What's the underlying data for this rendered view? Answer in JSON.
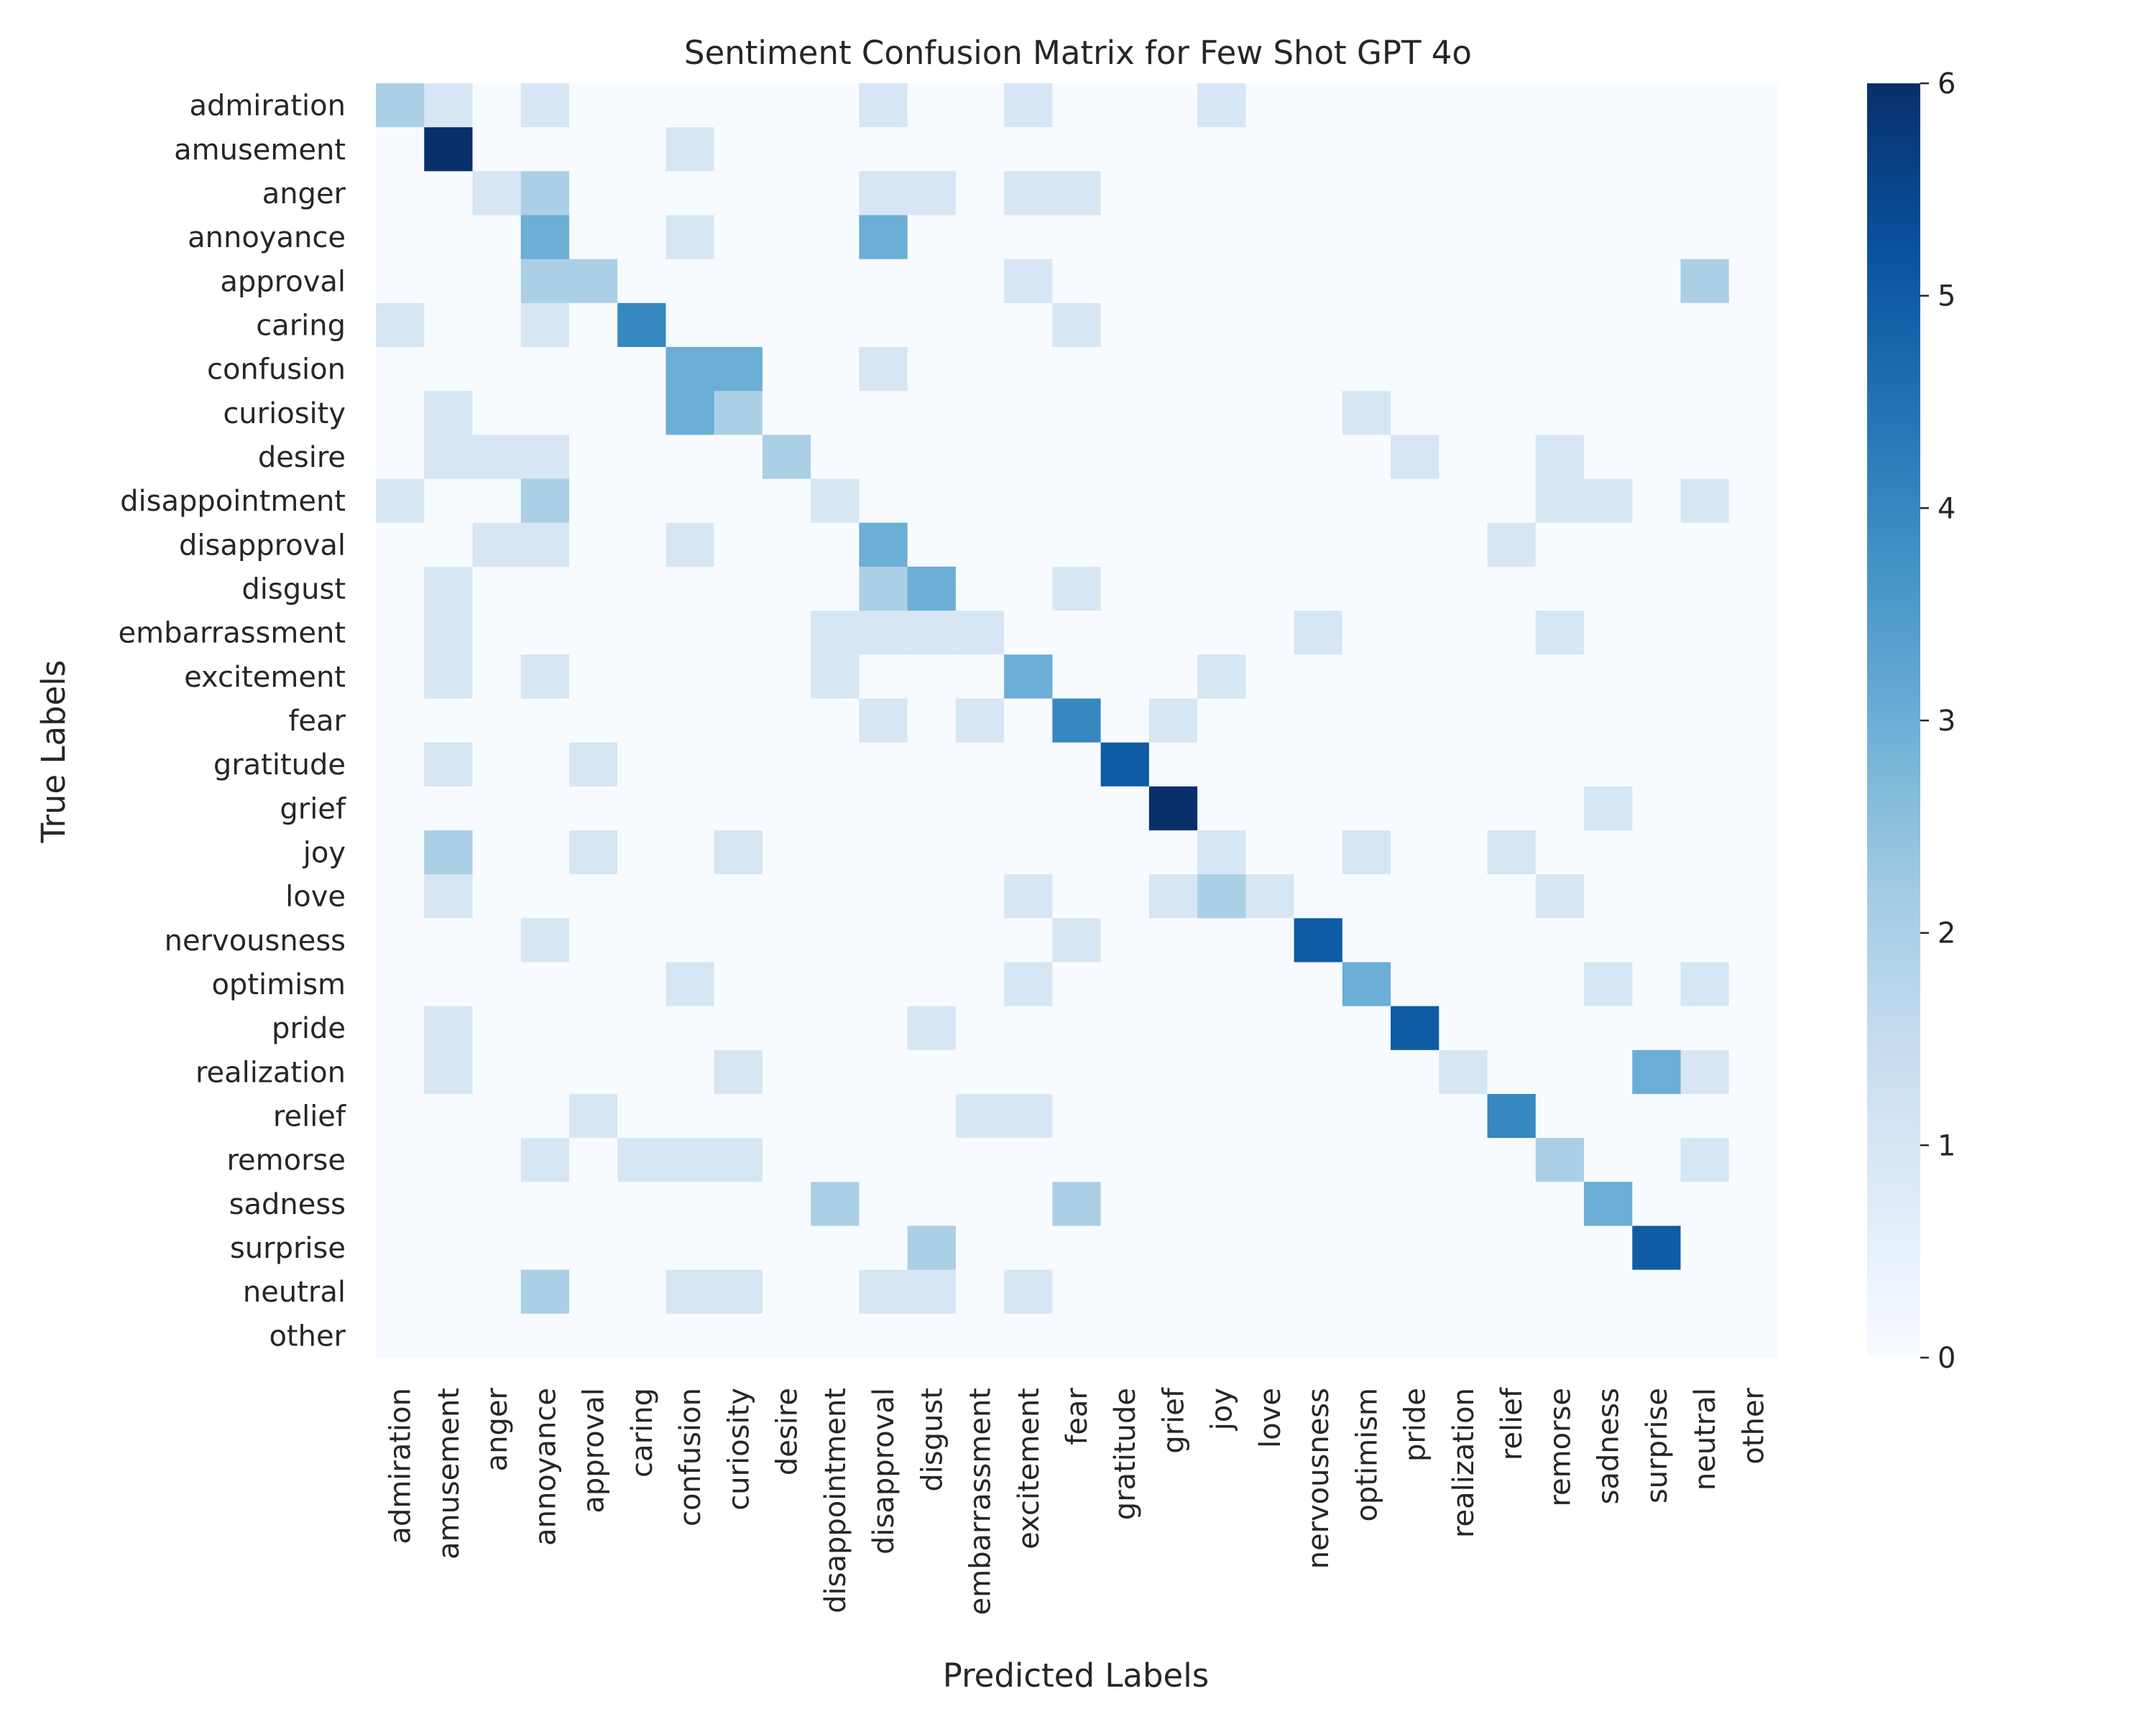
{
  "chart_data": {
    "type": "heatmap",
    "title": "Sentiment Confusion Matrix for Few Shot GPT 4o",
    "xlabel": "Predicted Labels",
    "ylabel": "True Labels",
    "colormap": "Blues",
    "color_low": "#f7fbff",
    "color_high": "#08306b",
    "vmin": 0,
    "vmax": 6,
    "colorbar_ticks": [
      "0",
      "1",
      "2",
      "3",
      "4",
      "5",
      "6"
    ],
    "labels": [
      "admiration",
      "amusement",
      "anger",
      "annoyance",
      "approval",
      "caring",
      "confusion",
      "curiosity",
      "desire",
      "disappointment",
      "disapproval",
      "disgust",
      "embarrassment",
      "excitement",
      "fear",
      "gratitude",
      "grief",
      "joy",
      "love",
      "nervousness",
      "optimism",
      "pride",
      "realization",
      "relief",
      "remorse",
      "sadness",
      "surprise",
      "neutral",
      "other"
    ],
    "matrix": [
      [
        2,
        1,
        0,
        1,
        0,
        0,
        0,
        0,
        0,
        0,
        1,
        0,
        0,
        1,
        0,
        0,
        0,
        1,
        0,
        0,
        0,
        0,
        0,
        0,
        0,
        0,
        0,
        0,
        0
      ],
      [
        0,
        6,
        0,
        0,
        0,
        0,
        1,
        0,
        0,
        0,
        0,
        0,
        0,
        0,
        0,
        0,
        0,
        0,
        0,
        0,
        0,
        0,
        0,
        0,
        0,
        0,
        0,
        0,
        0
      ],
      [
        0,
        0,
        1,
        2,
        0,
        0,
        0,
        0,
        0,
        0,
        1,
        1,
        0,
        1,
        1,
        0,
        0,
        0,
        0,
        0,
        0,
        0,
        0,
        0,
        0,
        0,
        0,
        0,
        0
      ],
      [
        0,
        0,
        0,
        3,
        0,
        0,
        1,
        0,
        0,
        0,
        3,
        0,
        0,
        0,
        0,
        0,
        0,
        0,
        0,
        0,
        0,
        0,
        0,
        0,
        0,
        0,
        0,
        0,
        0
      ],
      [
        0,
        0,
        0,
        2,
        2,
        0,
        0,
        0,
        0,
        0,
        0,
        0,
        0,
        1,
        0,
        0,
        0,
        0,
        0,
        0,
        0,
        0,
        0,
        0,
        0,
        0,
        0,
        2,
        0
      ],
      [
        1,
        0,
        0,
        1,
        0,
        4,
        0,
        0,
        0,
        0,
        0,
        0,
        0,
        0,
        1,
        0,
        0,
        0,
        0,
        0,
        0,
        0,
        0,
        0,
        0,
        0,
        0,
        0,
        0
      ],
      [
        0,
        0,
        0,
        0,
        0,
        0,
        3,
        3,
        0,
        0,
        1,
        0,
        0,
        0,
        0,
        0,
        0,
        0,
        0,
        0,
        0,
        0,
        0,
        0,
        0,
        0,
        0,
        0,
        0
      ],
      [
        0,
        1,
        0,
        0,
        0,
        0,
        3,
        2,
        0,
        0,
        0,
        0,
        0,
        0,
        0,
        0,
        0,
        0,
        0,
        0,
        1,
        0,
        0,
        0,
        0,
        0,
        0,
        0,
        0
      ],
      [
        0,
        1,
        1,
        1,
        0,
        0,
        0,
        0,
        2,
        0,
        0,
        0,
        0,
        0,
        0,
        0,
        0,
        0,
        0,
        0,
        0,
        1,
        0,
        0,
        1,
        0,
        0,
        0,
        0
      ],
      [
        1,
        0,
        0,
        2,
        0,
        0,
        0,
        0,
        0,
        1,
        0,
        0,
        0,
        0,
        0,
        0,
        0,
        0,
        0,
        0,
        0,
        0,
        0,
        0,
        1,
        1,
        0,
        1,
        0
      ],
      [
        0,
        0,
        1,
        1,
        0,
        0,
        1,
        0,
        0,
        0,
        3,
        0,
        0,
        0,
        0,
        0,
        0,
        0,
        0,
        0,
        0,
        0,
        0,
        1,
        0,
        0,
        0,
        0,
        0
      ],
      [
        0,
        1,
        0,
        0,
        0,
        0,
        0,
        0,
        0,
        0,
        2,
        3,
        0,
        0,
        1,
        0,
        0,
        0,
        0,
        0,
        0,
        0,
        0,
        0,
        0,
        0,
        0,
        0,
        0
      ],
      [
        0,
        1,
        0,
        0,
        0,
        0,
        0,
        0,
        0,
        1,
        1,
        1,
        1,
        0,
        0,
        0,
        0,
        0,
        0,
        1,
        0,
        0,
        0,
        0,
        1,
        0,
        0,
        0,
        0
      ],
      [
        0,
        1,
        0,
        1,
        0,
        0,
        0,
        0,
        0,
        1,
        0,
        0,
        0,
        3,
        0,
        0,
        0,
        1,
        0,
        0,
        0,
        0,
        0,
        0,
        0,
        0,
        0,
        0,
        0
      ],
      [
        0,
        0,
        0,
        0,
        0,
        0,
        0,
        0,
        0,
        0,
        1,
        0,
        1,
        0,
        4,
        0,
        1,
        0,
        0,
        0,
        0,
        0,
        0,
        0,
        0,
        0,
        0,
        0,
        0
      ],
      [
        0,
        1,
        0,
        0,
        1,
        0,
        0,
        0,
        0,
        0,
        0,
        0,
        0,
        0,
        0,
        5,
        0,
        0,
        0,
        0,
        0,
        0,
        0,
        0,
        0,
        0,
        0,
        0,
        0
      ],
      [
        0,
        0,
        0,
        0,
        0,
        0,
        0,
        0,
        0,
        0,
        0,
        0,
        0,
        0,
        0,
        0,
        6,
        0,
        0,
        0,
        0,
        0,
        0,
        0,
        0,
        1,
        0,
        0,
        0
      ],
      [
        0,
        2,
        0,
        0,
        1,
        0,
        0,
        1,
        0,
        0,
        0,
        0,
        0,
        0,
        0,
        0,
        0,
        1,
        0,
        0,
        1,
        0,
        0,
        1,
        0,
        0,
        0,
        0,
        0
      ],
      [
        0,
        1,
        0,
        0,
        0,
        0,
        0,
        0,
        0,
        0,
        0,
        0,
        0,
        1,
        0,
        0,
        1,
        2,
        1,
        0,
        0,
        0,
        0,
        0,
        1,
        0,
        0,
        0,
        0
      ],
      [
        0,
        0,
        0,
        1,
        0,
        0,
        0,
        0,
        0,
        0,
        0,
        0,
        0,
        0,
        1,
        0,
        0,
        0,
        0,
        5,
        0,
        0,
        0,
        0,
        0,
        0,
        0,
        0,
        0
      ],
      [
        0,
        0,
        0,
        0,
        0,
        0,
        1,
        0,
        0,
        0,
        0,
        0,
        0,
        1,
        0,
        0,
        0,
        0,
        0,
        0,
        3,
        0,
        0,
        0,
        0,
        1,
        0,
        1,
        0
      ],
      [
        0,
        1,
        0,
        0,
        0,
        0,
        0,
        0,
        0,
        0,
        0,
        1,
        0,
        0,
        0,
        0,
        0,
        0,
        0,
        0,
        0,
        5,
        0,
        0,
        0,
        0,
        0,
        0,
        0
      ],
      [
        0,
        1,
        0,
        0,
        0,
        0,
        0,
        1,
        0,
        0,
        0,
        0,
        0,
        0,
        0,
        0,
        0,
        0,
        0,
        0,
        0,
        0,
        1,
        0,
        0,
        0,
        3,
        1,
        0
      ],
      [
        0,
        0,
        0,
        0,
        1,
        0,
        0,
        0,
        0,
        0,
        0,
        0,
        1,
        1,
        0,
        0,
        0,
        0,
        0,
        0,
        0,
        0,
        0,
        4,
        0,
        0,
        0,
        0,
        0
      ],
      [
        0,
        0,
        0,
        1,
        0,
        1,
        1,
        1,
        0,
        0,
        0,
        0,
        0,
        0,
        0,
        0,
        0,
        0,
        0,
        0,
        0,
        0,
        0,
        0,
        2,
        0,
        0,
        1,
        0
      ],
      [
        0,
        0,
        0,
        0,
        0,
        0,
        0,
        0,
        0,
        2,
        0,
        0,
        0,
        0,
        2,
        0,
        0,
        0,
        0,
        0,
        0,
        0,
        0,
        0,
        0,
        3,
        0,
        0,
        0
      ],
      [
        0,
        0,
        0,
        0,
        0,
        0,
        0,
        0,
        0,
        0,
        0,
        2,
        0,
        0,
        0,
        0,
        0,
        0,
        0,
        0,
        0,
        0,
        0,
        0,
        0,
        0,
        5,
        0,
        0
      ],
      [
        0,
        0,
        0,
        2,
        0,
        0,
        1,
        1,
        0,
        0,
        1,
        1,
        0,
        1,
        0,
        0,
        0,
        0,
        0,
        0,
        0,
        0,
        0,
        0,
        0,
        0,
        0,
        0,
        0
      ],
      [
        0,
        0,
        0,
        0,
        0,
        0,
        0,
        0,
        0,
        0,
        0,
        0,
        0,
        0,
        0,
        0,
        0,
        0,
        0,
        0,
        0,
        0,
        0,
        0,
        0,
        0,
        0,
        0,
        0
      ]
    ]
  }
}
